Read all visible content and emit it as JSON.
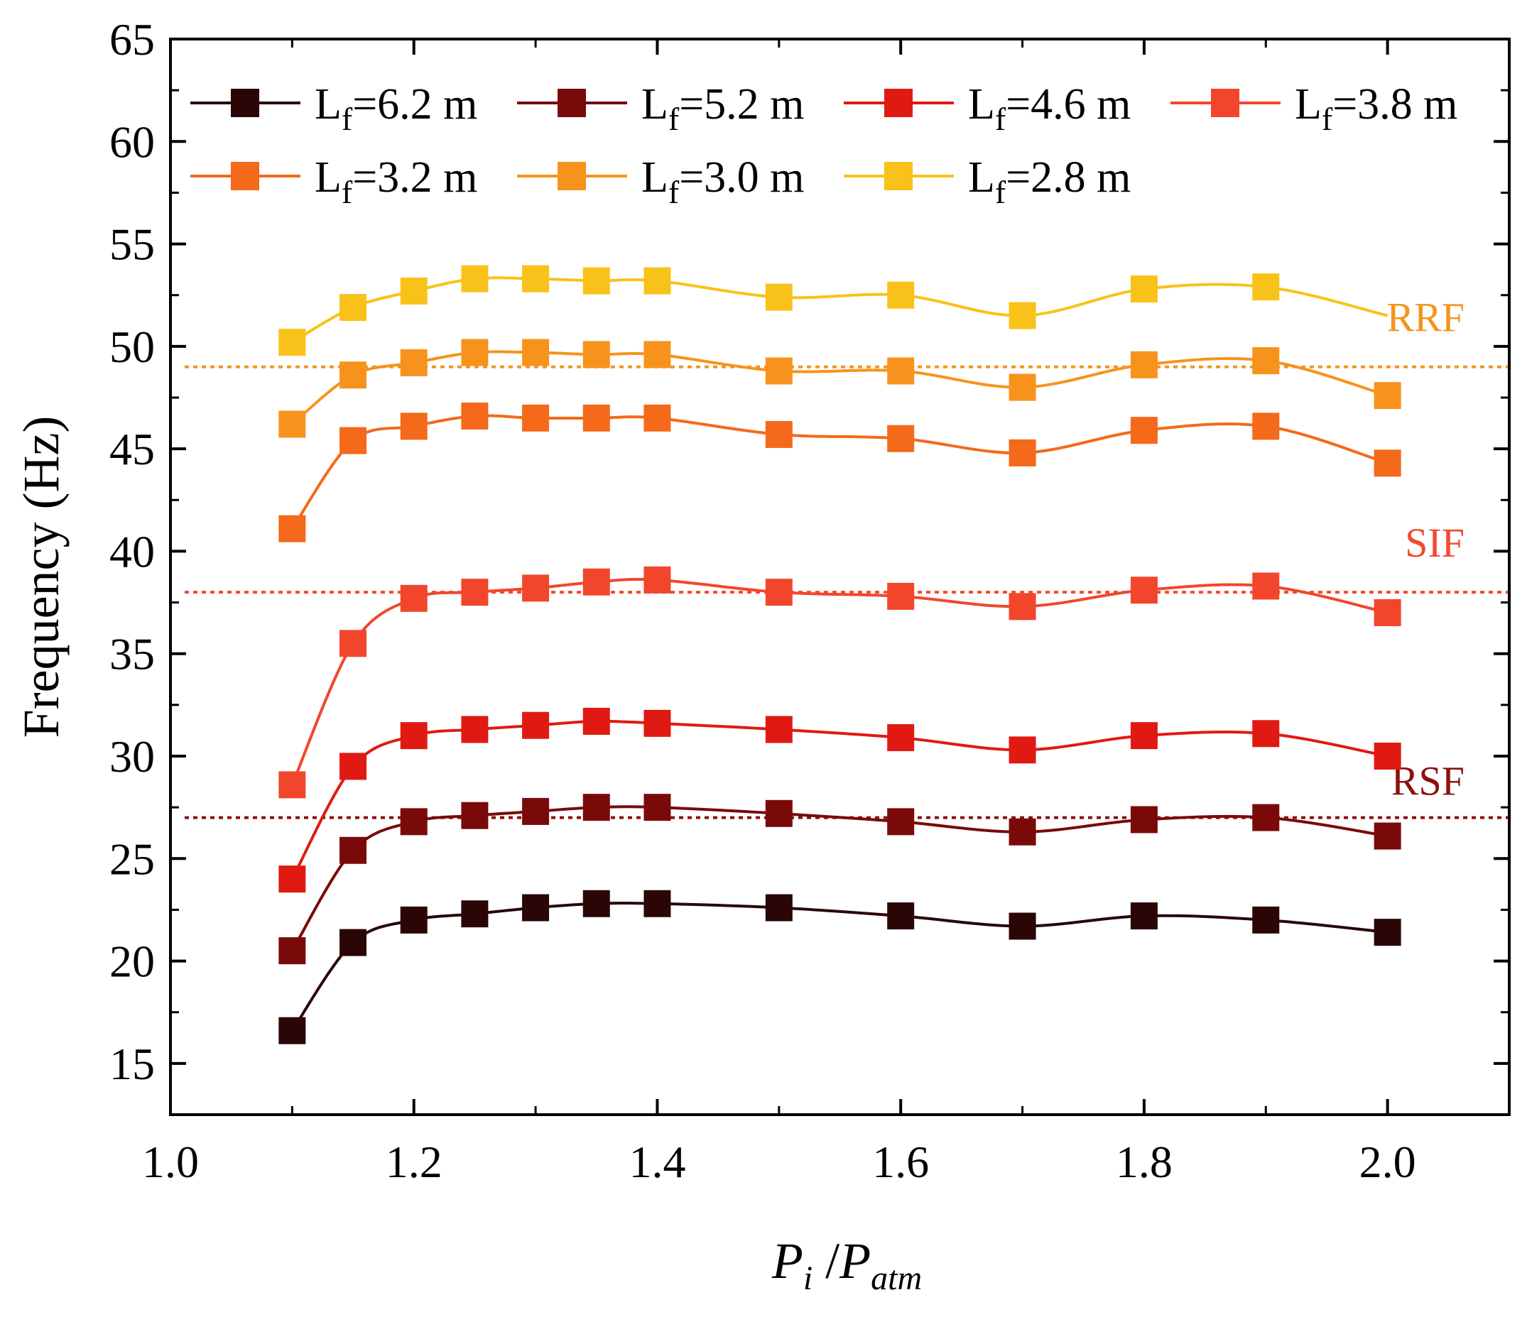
{
  "chart_data": {
    "type": "line",
    "title": "",
    "xlabel": "P_i /P_atm",
    "xlabel_parts": {
      "main1": "P",
      "sub1": "i",
      "sep": " /",
      "main2": "P",
      "sub2": "atm"
    },
    "ylabel": "Frequency (Hz)",
    "xlim": [
      1.0,
      2.1
    ],
    "ylim": [
      12.5,
      65
    ],
    "xticks": [
      1.0,
      1.2,
      1.4,
      1.6,
      1.8,
      2.0
    ],
    "xtick_labels": [
      "1.0",
      "1.2",
      "1.4",
      "1.6",
      "1.8",
      "2.0"
    ],
    "yticks": [
      15,
      20,
      25,
      30,
      35,
      40,
      45,
      50,
      55,
      60,
      65
    ],
    "ytick_labels": [
      "15",
      "20",
      "25",
      "30",
      "35",
      "40",
      "45",
      "50",
      "55",
      "60",
      "65"
    ],
    "grid": false,
    "legend_position": "top",
    "x": [
      1.1,
      1.15,
      1.2,
      1.25,
      1.3,
      1.35,
      1.4,
      1.5,
      1.6,
      1.7,
      1.8,
      1.9,
      2.0
    ],
    "series": [
      {
        "name": "Lf=6.2 m",
        "label_main": "L",
        "label_sub": "f",
        "label_rest": "=6.2 m",
        "color": "#2a0606",
        "values": [
          16.6,
          20.9,
          22.0,
          22.3,
          22.6,
          22.8,
          22.8,
          22.6,
          22.2,
          21.7,
          22.2,
          22.0,
          21.4
        ]
      },
      {
        "name": "Lf=5.2 m",
        "label_main": "L",
        "label_sub": "f",
        "label_rest": "=5.2 m",
        "color": "#7a0a0a",
        "values": [
          20.5,
          25.4,
          26.8,
          27.1,
          27.3,
          27.5,
          27.5,
          27.2,
          26.8,
          26.3,
          26.9,
          27.0,
          26.1
        ]
      },
      {
        "name": "Lf=4.6 m",
        "label_main": "L",
        "label_sub": "f",
        "label_rest": "=4.6 m",
        "color": "#e01a12",
        "values": [
          24.0,
          29.5,
          31.0,
          31.3,
          31.5,
          31.7,
          31.6,
          31.3,
          30.9,
          30.3,
          31.0,
          31.1,
          30.0
        ]
      },
      {
        "name": "Lf=3.8 m",
        "label_main": "L",
        "label_sub": "f",
        "label_rest": "=3.8 m",
        "color": "#f2462c",
        "values": [
          28.6,
          35.5,
          37.7,
          38.0,
          38.2,
          38.5,
          38.6,
          38.0,
          37.8,
          37.3,
          38.1,
          38.3,
          37.0
        ]
      },
      {
        "name": "Lf=3.2 m",
        "label_main": "L",
        "label_sub": "f",
        "label_rest": "=3.2 m",
        "color": "#f4691a",
        "values": [
          41.1,
          45.4,
          46.1,
          46.6,
          46.5,
          46.5,
          46.5,
          45.7,
          45.5,
          44.8,
          45.9,
          46.1,
          44.3
        ]
      },
      {
        "name": "Lf=3.0 m",
        "label_main": "L",
        "label_sub": "f",
        "label_rest": "=3.0 m",
        "color": "#f7931c",
        "values": [
          46.2,
          48.6,
          49.2,
          49.7,
          49.7,
          49.6,
          49.6,
          48.8,
          48.8,
          48.0,
          49.1,
          49.3,
          47.6
        ]
      },
      {
        "name": "Lf=2.8 m",
        "label_main": "L",
        "label_sub": "f",
        "label_rest": "=2.8 m",
        "color": "#f9c21a",
        "values": [
          50.2,
          51.9,
          52.7,
          53.3,
          53.3,
          53.2,
          53.2,
          52.4,
          52.5,
          51.5,
          52.8,
          52.9,
          null
        ]
      }
    ],
    "series_tail": {
      "series": "Lf=2.8 m",
      "x": 2.0,
      "y": 51.5
    },
    "reference_lines": [
      {
        "label": "RRF",
        "y": 49.0,
        "color": "#f3951e"
      },
      {
        "label": "SIF",
        "y": 38.0,
        "color": "#f24a30"
      },
      {
        "label": "RSF",
        "y": 27.0,
        "color": "#8b1111"
      }
    ]
  }
}
